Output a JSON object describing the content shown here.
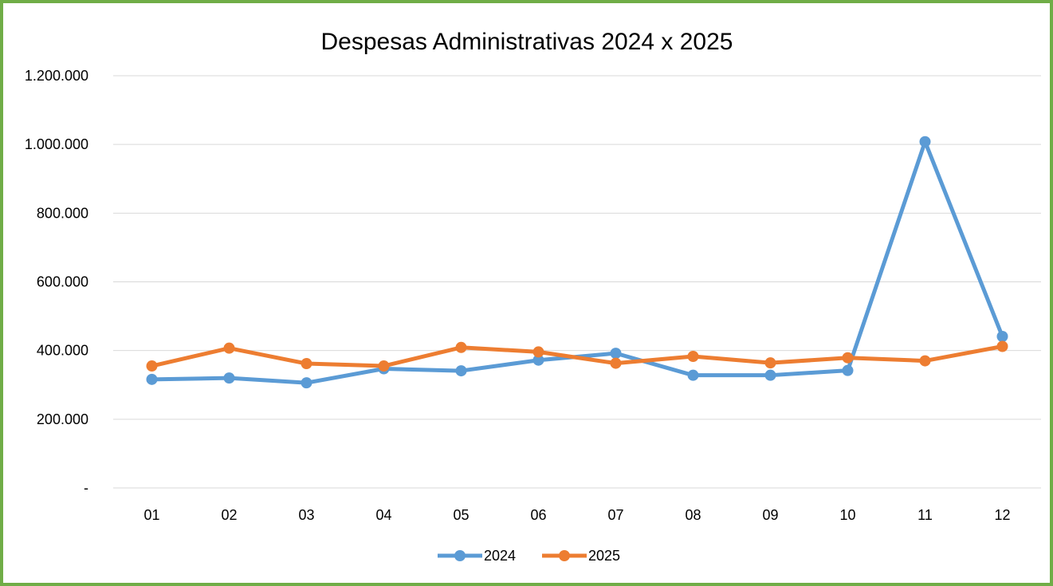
{
  "chart_data": {
    "type": "line",
    "title": "Despesas Administrativas 2024 x 2025",
    "categories": [
      "01",
      "02",
      "03",
      "04",
      "05",
      "06",
      "07",
      "08",
      "09",
      "10",
      "11",
      "12"
    ],
    "series": [
      {
        "name": "2024",
        "color": "#5b9bd5",
        "values": [
          316000,
          320000,
          306000,
          347000,
          341000,
          372000,
          392000,
          328000,
          328000,
          342000,
          1008000,
          441000
        ]
      },
      {
        "name": "2025",
        "color": "#ed7d31",
        "values": [
          355000,
          407000,
          362000,
          355000,
          409000,
          396000,
          363000,
          383000,
          364000,
          379000,
          370000,
          412000
        ]
      }
    ],
    "yticks": [
      {
        "value": 0,
        "label": "-"
      },
      {
        "value": 200000,
        "label": "200.000"
      },
      {
        "value": 400000,
        "label": "400.000"
      },
      {
        "value": 600000,
        "label": "600.000"
      },
      {
        "value": 800000,
        "label": "800.000"
      },
      {
        "value": 1000000,
        "label": "1.000.000"
      },
      {
        "value": 1200000,
        "label": "1.200.000"
      }
    ],
    "ylim": [
      0,
      1200000
    ],
    "xlabel": "",
    "ylabel": "",
    "grid": true,
    "legend_position": "bottom"
  },
  "frame_color": "#70ad47"
}
